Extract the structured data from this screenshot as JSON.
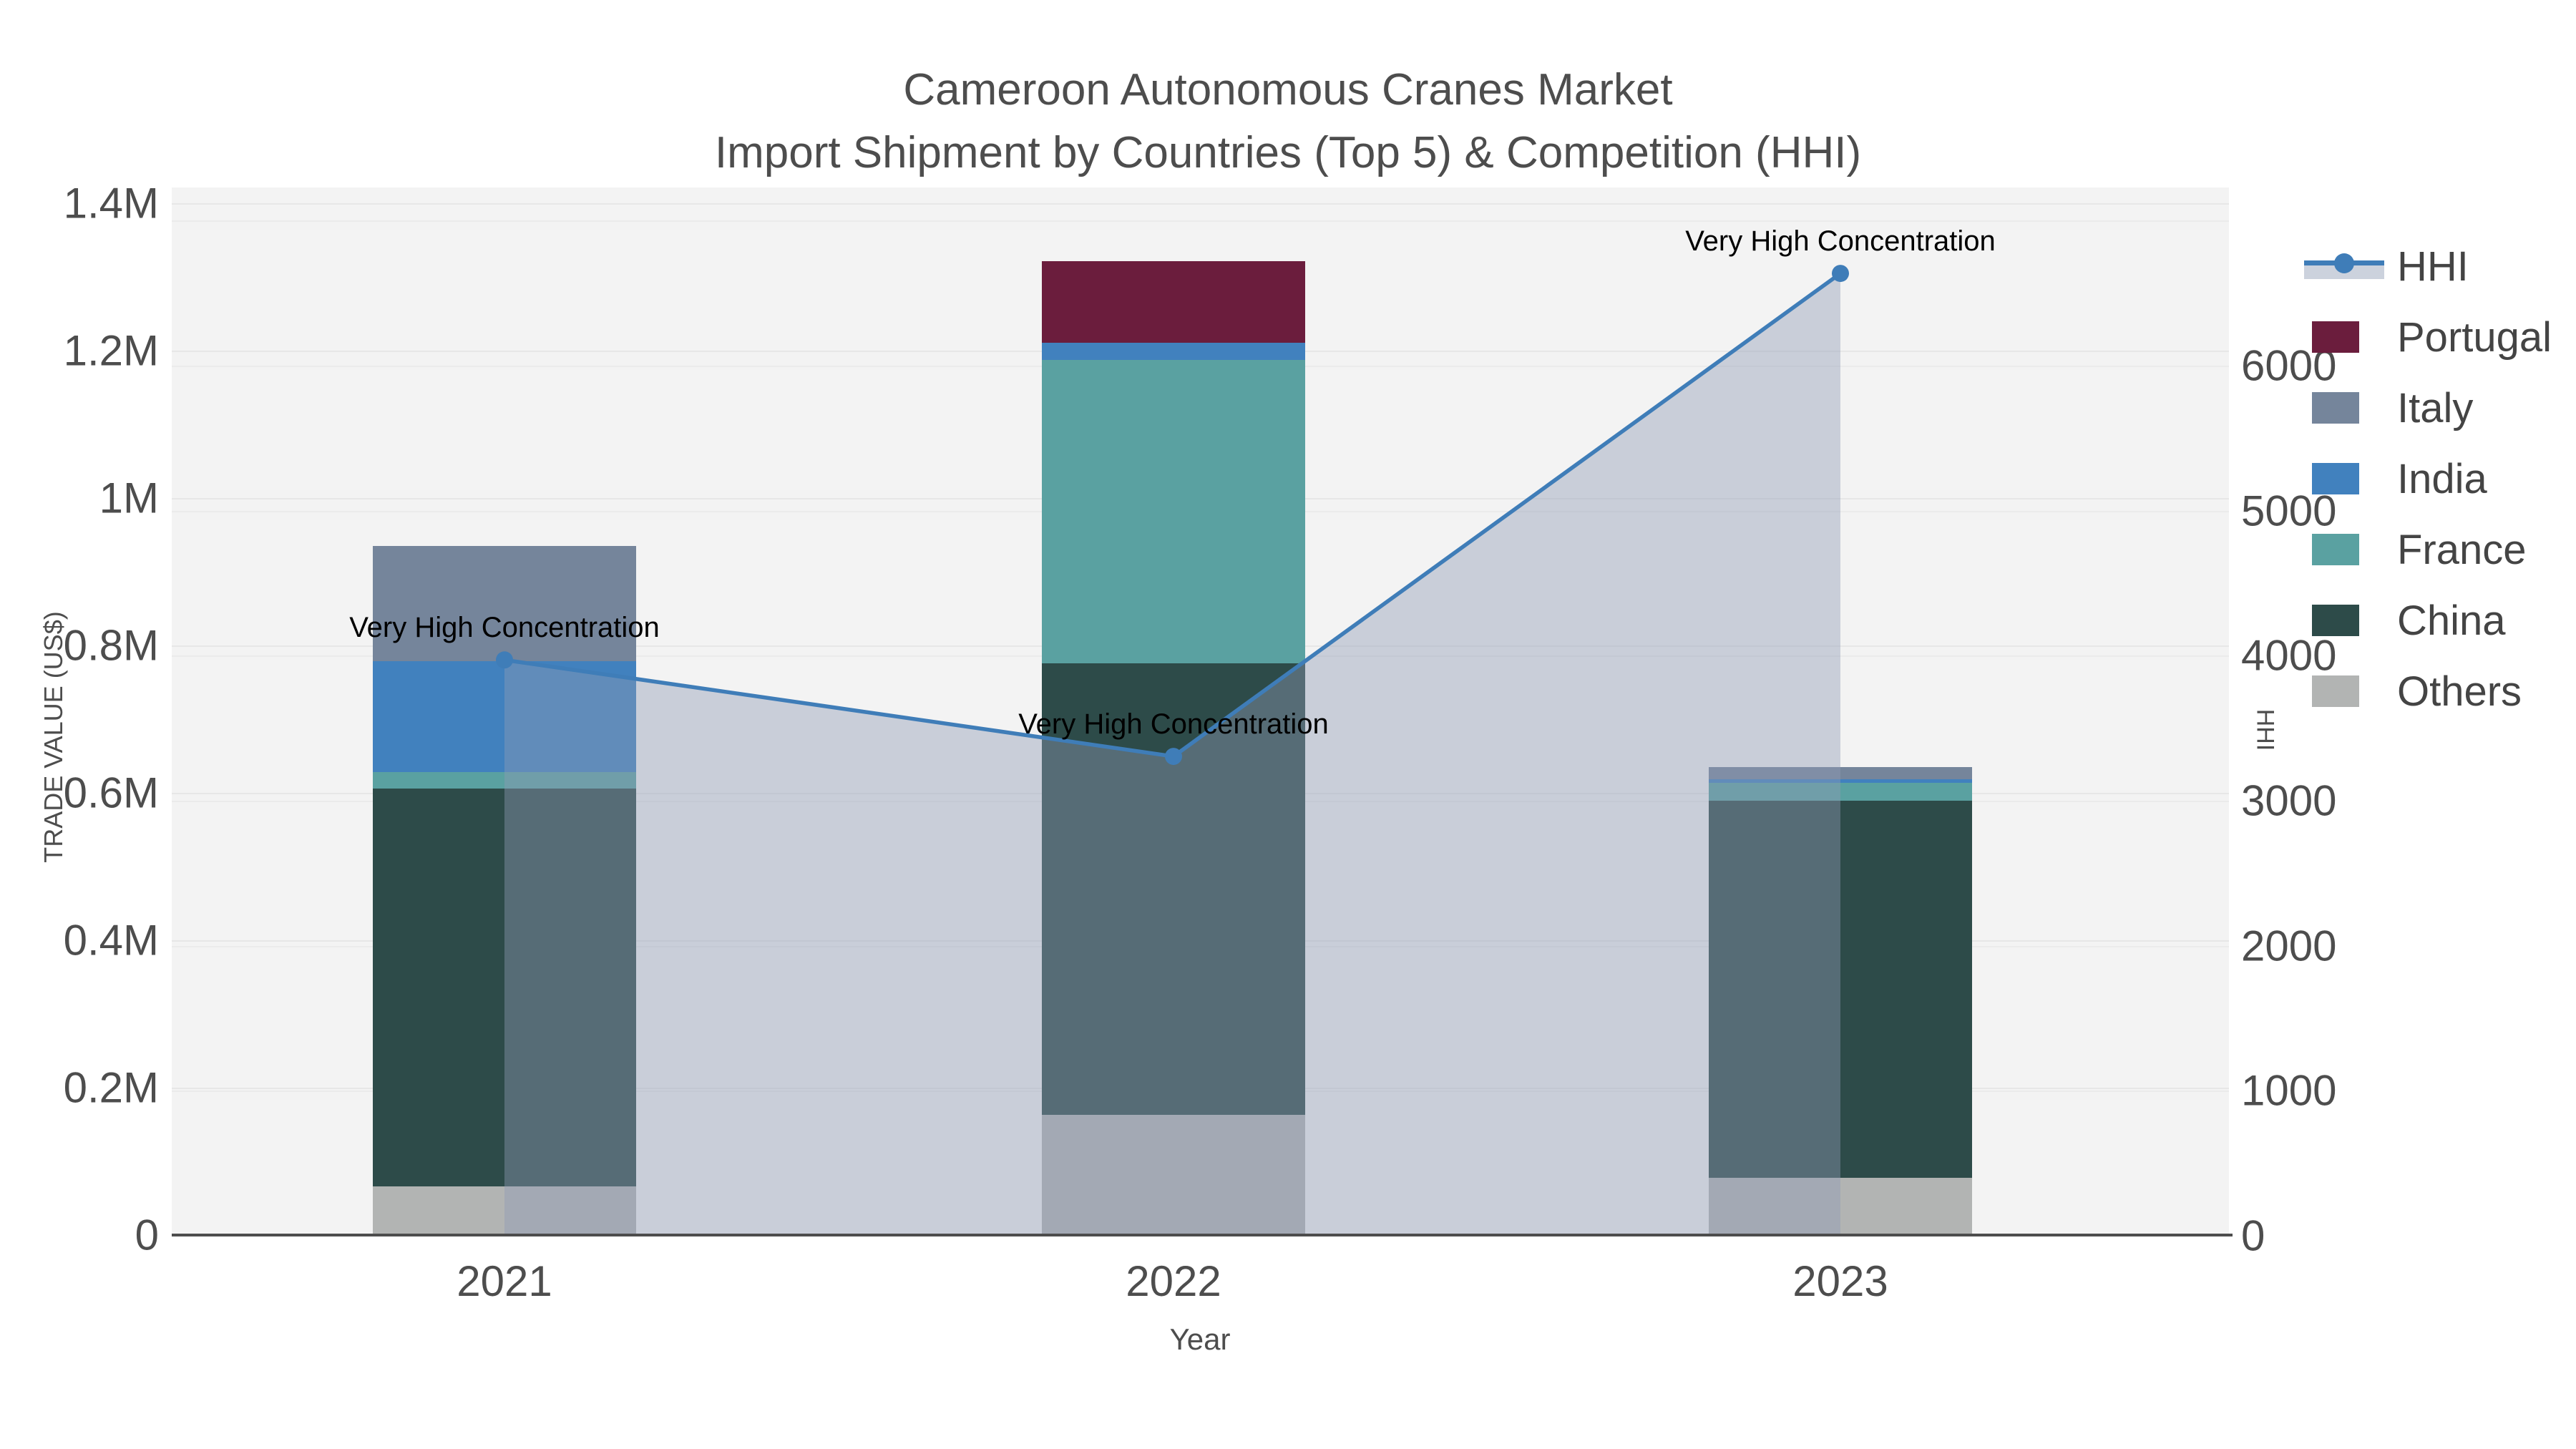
{
  "title": {
    "line1": "Cameroon Autonomous Cranes Market",
    "line2": "Import Shipment by Countries (Top 5) & Competition (HHI)"
  },
  "axes": {
    "x_title": "Year",
    "y_title": "TRADE VALUE (US$)",
    "y2_title": "HHI",
    "y_tick_labels": [
      "0",
      "0.2M",
      "0.4M",
      "0.6M",
      "0.8M",
      "1M",
      "1.2M",
      "1.4M"
    ],
    "y2_tick_labels": [
      "0",
      "1000",
      "2000",
      "3000",
      "4000",
      "5000",
      "6000"
    ]
  },
  "chart_data": {
    "type": "bar+line",
    "categories": [
      "2021",
      "2022",
      "2023"
    ],
    "bar_unit": "US$ trade value",
    "stack_order_bottom_to_top": [
      "Others",
      "China",
      "France",
      "India",
      "Italy",
      "Portugal"
    ],
    "series": [
      {
        "name": "Portugal",
        "color": "#6b1d3d",
        "values": [
          0,
          110000,
          0
        ]
      },
      {
        "name": "Italy",
        "color": "#75859b",
        "values": [
          156000,
          0,
          17000
        ]
      },
      {
        "name": "India",
        "color": "#4181be",
        "values": [
          151000,
          24000,
          4000
        ]
      },
      {
        "name": "France",
        "color": "#5aa1a1",
        "values": [
          22000,
          411000,
          25000
        ]
      },
      {
        "name": "China",
        "color": "#2d4b49",
        "values": [
          540000,
          613000,
          511000
        ]
      },
      {
        "name": "Others",
        "color": "#b2b4b3",
        "values": [
          66000,
          163000,
          78000
        ]
      }
    ],
    "bar_totals": [
      935000,
      1321000,
      635000
    ],
    "line_series": {
      "name": "HHI",
      "color": "#3f7db8",
      "area_fill": "rgba(143,155,180,0.42)",
      "values": [
        3970,
        3305,
        6635
      ]
    },
    "annotations": [
      {
        "text": "Very High Concentration",
        "category": "2021"
      },
      {
        "text": "Very High Concentration",
        "category": "2022"
      },
      {
        "text": "Very High Concentration",
        "category": "2023"
      }
    ],
    "xlabel": "Year",
    "ylabel": "TRADE VALUE (US$)",
    "y2label": "HHI",
    "ylim": [
      0,
      1400000
    ],
    "y2lim": [
      0,
      7080
    ],
    "grid": true,
    "legend_position": "right",
    "legend_order": [
      "HHI",
      "Portugal",
      "Italy",
      "India",
      "France",
      "China",
      "Others"
    ]
  },
  "colors": {
    "page_bg": "#ffffff",
    "plot_bg": "#f3f3f3",
    "grid_primary": "#e7e7e7",
    "grid_secondary": "#ebebeb",
    "axis_line": "#4d4d4d",
    "text": "#4d4d4d",
    "annotation_text": "#000000"
  }
}
